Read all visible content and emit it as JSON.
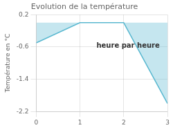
{
  "chart_data": {
    "type": "area",
    "title": "Evolution de la température",
    "ylabel": "Température en °C",
    "annotation": "heure par heure",
    "x": [
      0,
      1,
      2,
      3
    ],
    "values": [
      -0.5,
      0.0,
      0.0,
      -2.0
    ],
    "color": "#5ab8d0",
    "xlim": [
      0,
      3
    ],
    "xticks": [
      0,
      1,
      2,
      3
    ],
    "ylim": [
      -2.2,
      0.2
    ],
    "yticks": [
      0.2,
      -0.6,
      -1.4,
      -2.2
    ],
    "grid": true
  }
}
